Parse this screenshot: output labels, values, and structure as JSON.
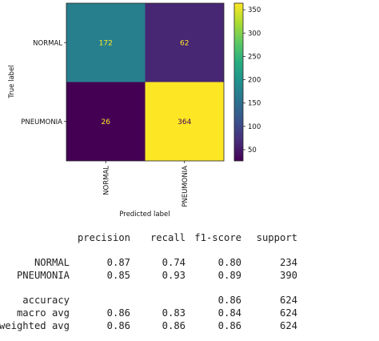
{
  "chart_data": [
    {
      "type": "heatmap",
      "xlabel": "Predicted label",
      "ylabel": "True label",
      "x_categories": [
        "NORMAL",
        "PNEUMONIA"
      ],
      "y_categories": [
        "NORMAL",
        "PNEUMONIA"
      ],
      "values": [
        [
          172,
          62
        ],
        [
          26,
          364
        ]
      ],
      "colormap": "viridis",
      "colorbar": {
        "range": [
          26,
          364
        ],
        "ticks": [
          50,
          100,
          150,
          200,
          250,
          300,
          350
        ]
      }
    },
    {
      "type": "table",
      "headers": [
        "",
        "precision",
        "recall",
        "f1-score",
        "support"
      ],
      "rows": [
        [
          "NORMAL",
          "0.87",
          "0.74",
          "0.80",
          "234"
        ],
        [
          "PNEUMONIA",
          "0.85",
          "0.93",
          "0.89",
          "390"
        ],
        [
          "accuracy",
          "",
          "",
          "0.86",
          "624"
        ],
        [
          "macro avg",
          "0.86",
          "0.83",
          "0.84",
          "624"
        ],
        [
          "weighted avg",
          "0.86",
          "0.86",
          "0.86",
          "624"
        ]
      ]
    }
  ]
}
